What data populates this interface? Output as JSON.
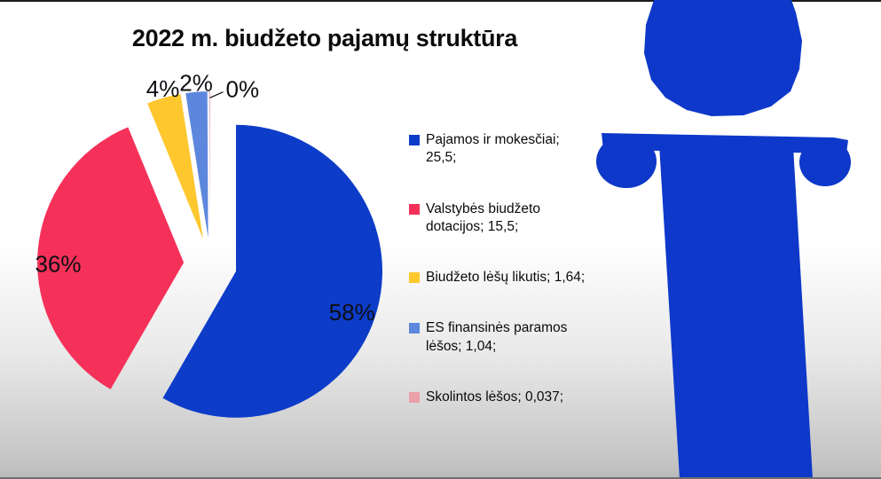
{
  "title": "2022 m. biudžeto pajamų struktūra",
  "chart_data": {
    "type": "pie",
    "title": "2022 m. biudžeto pajamų struktūra",
    "exploded": true,
    "legend_position": "right",
    "start_angle_deg": 0,
    "direction": "clockwise",
    "slices": [
      {
        "label": "Pajamos ir mokesčiai",
        "value": 25.5,
        "pct_label": "58%",
        "color": "#0d3cc8",
        "legend_text": "Pajamos ir mokesčiai; 25,5;",
        "legend_lines": [
          "Pajamos ir mokesčiai;",
          "25,5;"
        ]
      },
      {
        "label": "Valstybės biudžeto dotacijos",
        "value": 15.5,
        "pct_label": "36%",
        "color": "#f5315a",
        "legend_text": "Valstybės biudžeto dotacijos; 15,5;",
        "legend_lines": [
          "Valstybės biudžeto",
          "dotacijos; 15,5;"
        ]
      },
      {
        "label": "Biudžeto lėšų likutis",
        "value": 1.64,
        "pct_label": "4%",
        "color": "#fec72e",
        "legend_text": "Biudžeto lėšų likutis; 1,64;",
        "legend_lines": [
          "Biudžeto lėšų likutis; 1,64;"
        ]
      },
      {
        "label": "ES finansinės paramos lėšos",
        "value": 1.04,
        "pct_label": "2%",
        "color": "#5d87dd",
        "legend_text": "ES finansinės paramos lėšos; 1,04;",
        "legend_lines": [
          "ES finansinės paramos",
          "lėšos; 1,04;"
        ]
      },
      {
        "label": "Skolintos lėšos",
        "value": 0.037,
        "pct_label": "0%",
        "color": "#eb9fa9",
        "legend_text": "Skolintos lėšos; 0,037;",
        "legend_lines": [
          "Skolintos lėšos; 0,037;"
        ]
      }
    ]
  },
  "decor": {
    "pillar_color": "#0d38c9",
    "background_top": "#ffffff",
    "background_bottom": "#c3c3c3"
  }
}
